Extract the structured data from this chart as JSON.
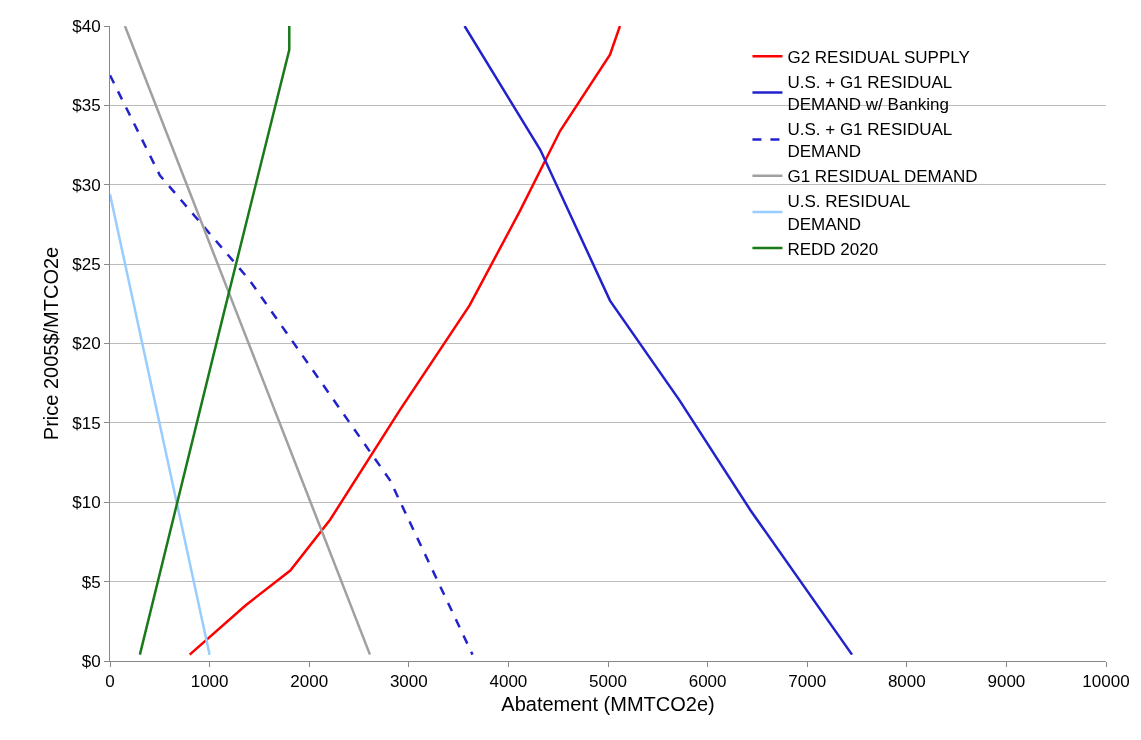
{
  "chart_data": {
    "type": "line",
    "xlabel": "Abatement (MMTCO2e)",
    "ylabel": "Price 2005$/MTCO2e",
    "xlim": [
      0,
      10000
    ],
    "xticks": [
      0,
      1000,
      2000,
      3000,
      4000,
      5000,
      6000,
      7000,
      8000,
      9000,
      10000
    ],
    "ylim": [
      0,
      40
    ],
    "yticks": [
      {
        "value": 0,
        "label": "$0"
      },
      {
        "value": 5,
        "label": "$5"
      },
      {
        "value": 10,
        "label": "$10"
      },
      {
        "value": 15,
        "label": "$15"
      },
      {
        "value": 20,
        "label": "$20"
      },
      {
        "value": 25,
        "label": "$25"
      },
      {
        "value": 30,
        "label": "$30"
      },
      {
        "value": 35,
        "label": "$35"
      },
      {
        "value": 40,
        "label": "$40"
      }
    ],
    "grid": "y",
    "legend": "top right",
    "marker": "none",
    "line_style": "solid",
    "series": [
      {
        "name": "G2 RESIDUAL SUPPLY",
        "color": "#ff0000",
        "x": [
          800,
          1360,
          1810,
          2210,
          2910,
          3610,
          4120,
          4520,
          5020,
          5120
        ],
        "values": [
          0.4,
          3.5,
          5.7,
          8.9,
          15.8,
          22.4,
          28.4,
          33.4,
          38.2,
          40
        ]
      },
      {
        "name": "U.S. + G1 RESIDUAL DEMAND w/ Banking",
        "color": "#2222cc",
        "x": [
          3560,
          4320,
          5020,
          5720,
          6430,
          7450
        ],
        "values": [
          40,
          32.2,
          22.7,
          16.4,
          9.5,
          0.4
        ]
      },
      {
        "name": "U.S. + G1 RESIDUAL DEMAND",
        "color": "#2222cc",
        "line_style": "dashed",
        "x": [
          0,
          500,
          1400,
          2810,
          3640
        ],
        "values": [
          36.9,
          30.6,
          24,
          11.4,
          0.4
        ]
      },
      {
        "name": "G1 RESIDUAL DEMAND",
        "color": "#a0a0a0",
        "x": [
          150,
          1380,
          2610
        ],
        "values": [
          40,
          20.2,
          0.4
        ]
      },
      {
        "name": "U.S. RESIDUAL DEMAND",
        "color": "#99ccff",
        "x": [
          0,
          1000
        ],
        "values": [
          29.4,
          0.4
        ]
      },
      {
        "name": "REDD 2020",
        "color": "#1a7a1a",
        "x": [
          300,
          1150,
          1800,
          1800
        ],
        "values": [
          0.4,
          22.1,
          38.5,
          40
        ]
      }
    ]
  }
}
